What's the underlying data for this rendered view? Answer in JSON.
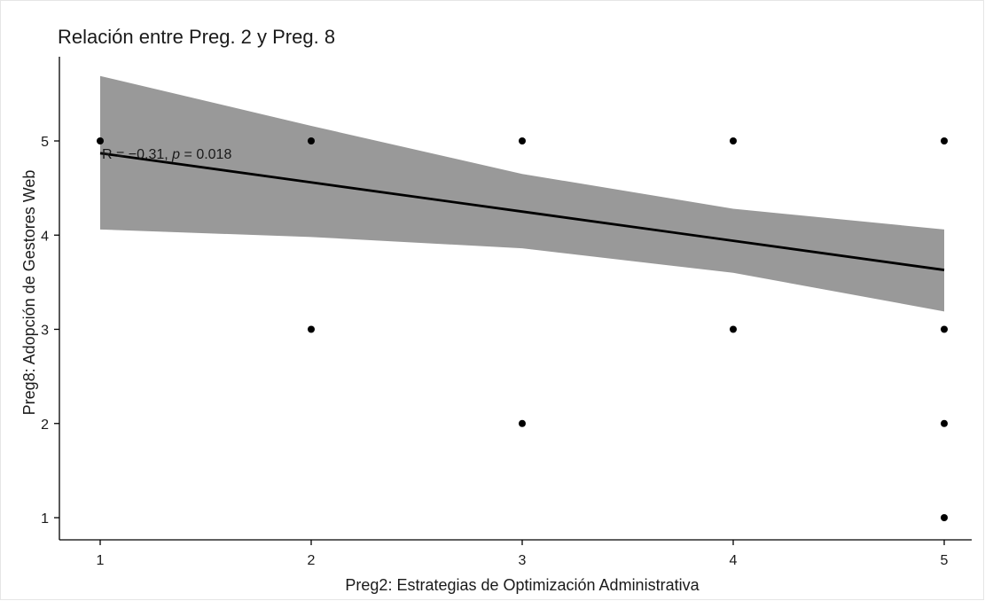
{
  "chart_data": {
    "type": "scatter",
    "title": "Relación entre Preg. 2 y Preg. 8",
    "xlabel": "Preg2: Estrategias de Optimización Administrativa",
    "ylabel": "Preg8:  Adopción de Gestores Web",
    "x_ticks": [
      "1",
      "2",
      "3",
      "4",
      "5"
    ],
    "y_ticks": [
      "1",
      "2",
      "3",
      "4",
      "5"
    ],
    "points": [
      {
        "x": 1,
        "y": 5
      },
      {
        "x": 2,
        "y": 5
      },
      {
        "x": 2,
        "y": 3
      },
      {
        "x": 3,
        "y": 5
      },
      {
        "x": 3,
        "y": 2
      },
      {
        "x": 4,
        "y": 5
      },
      {
        "x": 4,
        "y": 3
      },
      {
        "x": 5,
        "y": 5
      },
      {
        "x": 5,
        "y": 3
      },
      {
        "x": 5,
        "y": 2
      },
      {
        "x": 5,
        "y": 1
      }
    ],
    "regression": {
      "x": [
        1,
        2,
        3,
        4,
        5
      ],
      "fit": [
        4.87,
        4.56,
        4.25,
        3.94,
        3.63
      ],
      "ci_lower": [
        4.06,
        3.98,
        3.86,
        3.6,
        3.19
      ],
      "ci_upper": [
        5.69,
        5.16,
        4.65,
        4.28,
        4.06
      ]
    },
    "annotation": {
      "r_prefix": "R = −0.31, ",
      "p_symbol": "p",
      "p_suffix": " = 0.018",
      "x": 1.0,
      "y": 4.83
    },
    "grid": false,
    "colors": {
      "band": "#999999",
      "line": "#000000",
      "point": "#000000",
      "axis": "#000000"
    }
  }
}
